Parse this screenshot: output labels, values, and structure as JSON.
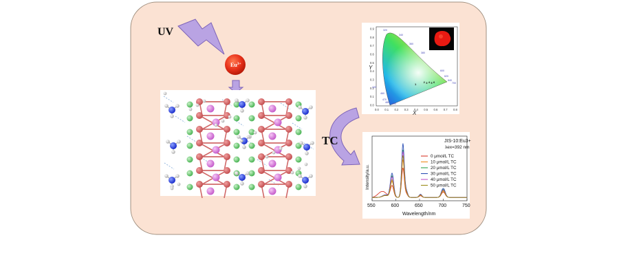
{
  "diagram": {
    "uv_label": "UV",
    "eu_label": "Eu",
    "eu_charge": "3+",
    "tc_label": "TC",
    "colors": {
      "panel_fill": "#fbe2d3",
      "panel_stroke": "#a09080",
      "arrow_fill": "#b9a3e3",
      "arrow_stroke": "#7e64b8",
      "eu_ball": "#e8311a"
    }
  },
  "cie_chart": {
    "xlabel": "X",
    "ylabel": "Y",
    "x_ticks": [
      "0.0",
      "0.1",
      "0.2",
      "0.3",
      "0.4",
      "0.5",
      "0.6",
      "0.7",
      "0.8"
    ],
    "y_ticks": [
      "0.0",
      "0.1",
      "0.2",
      "0.3",
      "0.4",
      "0.5",
      "0.6",
      "0.7",
      "0.8",
      "0.9"
    ],
    "wavelength_labels": [
      "320",
      "340",
      "360",
      "380",
      "460",
      "470",
      "480",
      "490",
      "600",
      "620",
      "640",
      "700",
      "420"
    ],
    "point_labels": [
      "1",
      "2",
      "3",
      "4",
      "5",
      "6"
    ],
    "inset": "red phosphor photograph"
  },
  "chart_data": {
    "type": "line",
    "title": "JIS-10:Eu3+",
    "subtitle": "λex=392 nm",
    "xlabel": "Wavelength/nm",
    "ylabel": "Intensity/a.u.",
    "xlim": [
      550,
      750
    ],
    "x_ticks": [
      "550",
      "600",
      "650",
      "700",
      "750"
    ],
    "legend_placement": "right",
    "series": [
      {
        "name": "0 μmol/L TC",
        "color": "#d93a2b",
        "peak592": 0.22,
        "peak616": 0.55,
        "peak700": 0.1
      },
      {
        "name": "10 μmol/L TC",
        "color": "#f08a1c",
        "peak592": 0.3,
        "peak616": 0.7,
        "peak700": 0.12
      },
      {
        "name": "20 μmol/L TC",
        "color": "#2ea24a",
        "peak592": 0.4,
        "peak616": 0.88,
        "peak700": 0.15
      },
      {
        "name": "30 μmol/L TC",
        "color": "#2b4fb4",
        "peak592": 0.45,
        "peak616": 1.0,
        "peak700": 0.17
      },
      {
        "name": "40 μmol/L TC",
        "color": "#c258c9",
        "peak592": 0.38,
        "peak616": 0.85,
        "peak700": 0.14
      },
      {
        "name": "50 μmol/L TC",
        "color": "#9c8a18",
        "peak592": 0.33,
        "peak616": 0.78,
        "peak700": 0.13
      }
    ]
  }
}
